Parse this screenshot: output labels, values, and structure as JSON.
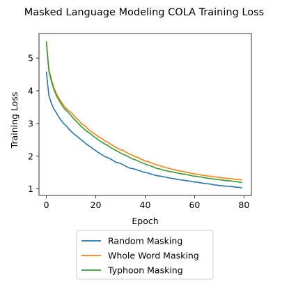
{
  "chart_data": {
    "type": "line",
    "title": "Masked Language Modeling COLA Training Loss",
    "xlabel": "Epoch",
    "ylabel": "Training Loss",
    "xlim": [
      -3,
      83
    ],
    "ylim": [
      0.8,
      5.75
    ],
    "xticks": [
      0,
      20,
      40,
      60,
      80
    ],
    "yticks": [
      1,
      2,
      3,
      4,
      5
    ],
    "grid": false,
    "legend_position": "bottom-outside",
    "series": [
      {
        "name": "Random Masking",
        "color": "#1f77b4",
        "x": [
          0,
          1,
          2,
          3,
          4,
          5,
          6,
          7,
          8,
          9,
          10,
          11,
          12,
          13,
          14,
          15,
          16,
          17,
          18,
          19,
          20,
          21,
          22,
          23,
          24,
          25,
          26,
          27,
          28,
          29,
          30,
          31,
          32,
          33,
          34,
          35,
          36,
          37,
          38,
          39,
          40,
          41,
          42,
          43,
          44,
          45,
          46,
          47,
          48,
          49,
          50,
          51,
          52,
          53,
          54,
          55,
          56,
          57,
          58,
          59,
          60,
          61,
          62,
          63,
          64,
          65,
          66,
          67,
          68,
          69,
          70,
          71,
          72,
          73,
          74,
          75,
          76,
          77,
          78,
          79
        ],
        "y": [
          4.57,
          3.85,
          3.62,
          3.45,
          3.33,
          3.2,
          3.09,
          3.0,
          2.93,
          2.84,
          2.76,
          2.69,
          2.63,
          2.57,
          2.51,
          2.45,
          2.38,
          2.33,
          2.28,
          2.22,
          2.17,
          2.11,
          2.07,
          2.02,
          1.98,
          1.95,
          1.91,
          1.87,
          1.82,
          1.8,
          1.78,
          1.74,
          1.7,
          1.66,
          1.63,
          1.62,
          1.6,
          1.57,
          1.55,
          1.52,
          1.5,
          1.49,
          1.46,
          1.44,
          1.42,
          1.4,
          1.39,
          1.38,
          1.36,
          1.35,
          1.33,
          1.32,
          1.31,
          1.29,
          1.28,
          1.27,
          1.26,
          1.25,
          1.24,
          1.22,
          1.21,
          1.21,
          1.19,
          1.18,
          1.17,
          1.16,
          1.15,
          1.14,
          1.12,
          1.12,
          1.1,
          1.1,
          1.09,
          1.08,
          1.08,
          1.07,
          1.06,
          1.05,
          1.05,
          1.03
        ]
      },
      {
        "name": "Whole Word Masking",
        "color": "#ff7f0e",
        "x": [
          0,
          1,
          2,
          3,
          4,
          5,
          6,
          7,
          8,
          9,
          10,
          11,
          12,
          13,
          14,
          15,
          16,
          17,
          18,
          19,
          20,
          21,
          22,
          23,
          24,
          25,
          26,
          27,
          28,
          29,
          30,
          31,
          32,
          33,
          34,
          35,
          36,
          37,
          38,
          39,
          40,
          41,
          42,
          43,
          44,
          45,
          46,
          47,
          48,
          49,
          50,
          51,
          52,
          53,
          54,
          55,
          56,
          57,
          58,
          59,
          60,
          61,
          62,
          63,
          64,
          65,
          66,
          67,
          68,
          69,
          70,
          71,
          72,
          73,
          74,
          75,
          76,
          77,
          78,
          79
        ],
        "y": [
          5.5,
          4.66,
          4.35,
          4.1,
          3.92,
          3.78,
          3.66,
          3.55,
          3.46,
          3.39,
          3.34,
          3.25,
          3.17,
          3.1,
          3.01,
          2.96,
          2.9,
          2.82,
          2.76,
          2.71,
          2.66,
          2.6,
          2.56,
          2.51,
          2.45,
          2.42,
          2.37,
          2.32,
          2.28,
          2.24,
          2.19,
          2.18,
          2.13,
          2.09,
          2.05,
          2.03,
          1.98,
          1.96,
          1.92,
          1.89,
          1.85,
          1.84,
          1.81,
          1.78,
          1.75,
          1.73,
          1.71,
          1.68,
          1.66,
          1.64,
          1.62,
          1.6,
          1.58,
          1.56,
          1.55,
          1.54,
          1.52,
          1.5,
          1.49,
          1.47,
          1.46,
          1.45,
          1.44,
          1.42,
          1.41,
          1.4,
          1.39,
          1.38,
          1.37,
          1.36,
          1.35,
          1.34,
          1.33,
          1.32,
          1.31,
          1.31,
          1.3,
          1.29,
          1.29,
          1.28
        ]
      },
      {
        "name": "Typhoon Masking",
        "color": "#2ca02c",
        "x": [
          0,
          1,
          2,
          3,
          4,
          5,
          6,
          7,
          8,
          9,
          10,
          11,
          12,
          13,
          14,
          15,
          16,
          17,
          18,
          19,
          20,
          21,
          22,
          23,
          24,
          25,
          26,
          27,
          28,
          29,
          30,
          31,
          32,
          33,
          34,
          35,
          36,
          37,
          38,
          39,
          40,
          41,
          42,
          43,
          44,
          45,
          46,
          47,
          48,
          49,
          50,
          51,
          52,
          53,
          54,
          55,
          56,
          57,
          58,
          59,
          60,
          61,
          62,
          63,
          64,
          65,
          66,
          67,
          68,
          69,
          70,
          71,
          72,
          73,
          74,
          75,
          76,
          77,
          78,
          79
        ],
        "y": [
          5.48,
          4.6,
          4.3,
          4.05,
          3.86,
          3.72,
          3.6,
          3.48,
          3.4,
          3.33,
          3.24,
          3.15,
          3.07,
          2.99,
          2.92,
          2.85,
          2.78,
          2.73,
          2.68,
          2.61,
          2.56,
          2.5,
          2.45,
          2.4,
          2.36,
          2.32,
          2.27,
          2.22,
          2.18,
          2.14,
          2.1,
          2.06,
          2.03,
          1.99,
          1.95,
          1.91,
          1.89,
          1.86,
          1.82,
          1.79,
          1.76,
          1.73,
          1.71,
          1.68,
          1.65,
          1.62,
          1.61,
          1.58,
          1.56,
          1.55,
          1.53,
          1.52,
          1.5,
          1.49,
          1.47,
          1.46,
          1.45,
          1.43,
          1.42,
          1.4,
          1.39,
          1.38,
          1.37,
          1.36,
          1.34,
          1.33,
          1.32,
          1.31,
          1.3,
          1.29,
          1.28,
          1.27,
          1.26,
          1.25,
          1.25,
          1.24,
          1.23,
          1.22,
          1.21,
          1.2
        ]
      }
    ]
  }
}
